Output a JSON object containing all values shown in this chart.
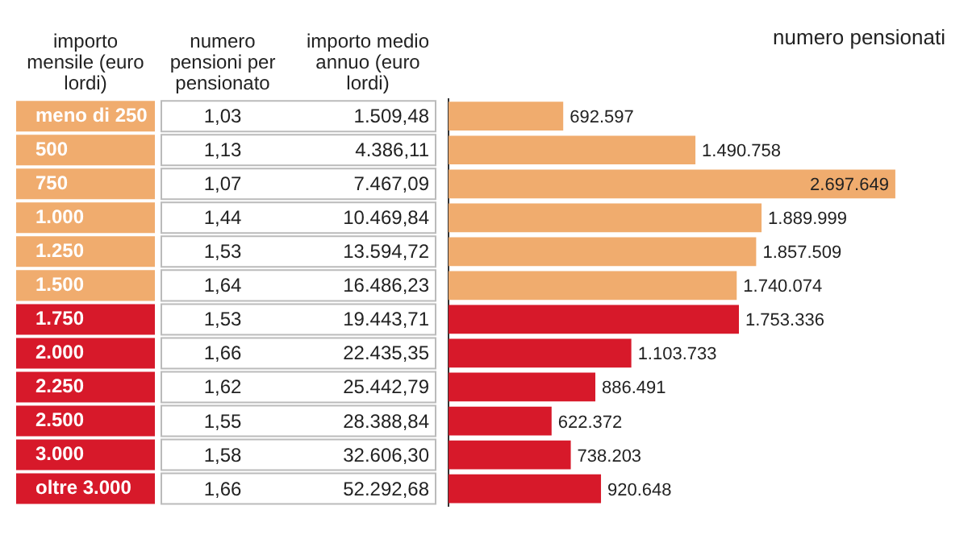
{
  "chart_data": {
    "type": "bar",
    "orientation": "horizontal",
    "title": "numero pensionati",
    "ylabel": "importo mensile (euro lordi)",
    "categories": [
      "meno di 250",
      "500",
      "750",
      "1.000",
      "1.250",
      "1.500",
      "1.750",
      "2.000",
      "2.250",
      "2.500",
      "3.000",
      "oltre 3.000"
    ],
    "values": [
      692597,
      1490758,
      2697649,
      1889999,
      1857509,
      1740074,
      1753336,
      1103733,
      886491,
      622372,
      738203,
      920648
    ],
    "value_labels": [
      "692.597",
      "1.490.758",
      "2.697.649",
      "1.889.999",
      "1.857.509",
      "1.740.074",
      "1.753.336",
      "1.103.733",
      "886.491",
      "622.372",
      "738.203",
      "920.648"
    ],
    "colors": [
      "#f0ac6e",
      "#f0ac6e",
      "#f0ac6e",
      "#f0ac6e",
      "#f0ac6e",
      "#f0ac6e",
      "#d7192a",
      "#d7192a",
      "#d7192a",
      "#d7192a",
      "#d7192a",
      "#d7192a"
    ],
    "annotations": [
      "numero pensioni per pensionato",
      "importo medio annuo (euro lordi)",
      "1,03",
      "1.509,48",
      "1,13",
      "4.386,11",
      "1,07",
      "7.467,09",
      "1,44",
      "10.469,84",
      "1,53",
      "13.594,72",
      "1,64",
      "16.486,23",
      "1,53",
      "19.443,71",
      "1,66",
      "22.435,35",
      "1,62",
      "25.442,79",
      "1,55",
      "28.388,84",
      "1,58",
      "32.606,30",
      "1,66",
      "52.292,68"
    ]
  }
}
